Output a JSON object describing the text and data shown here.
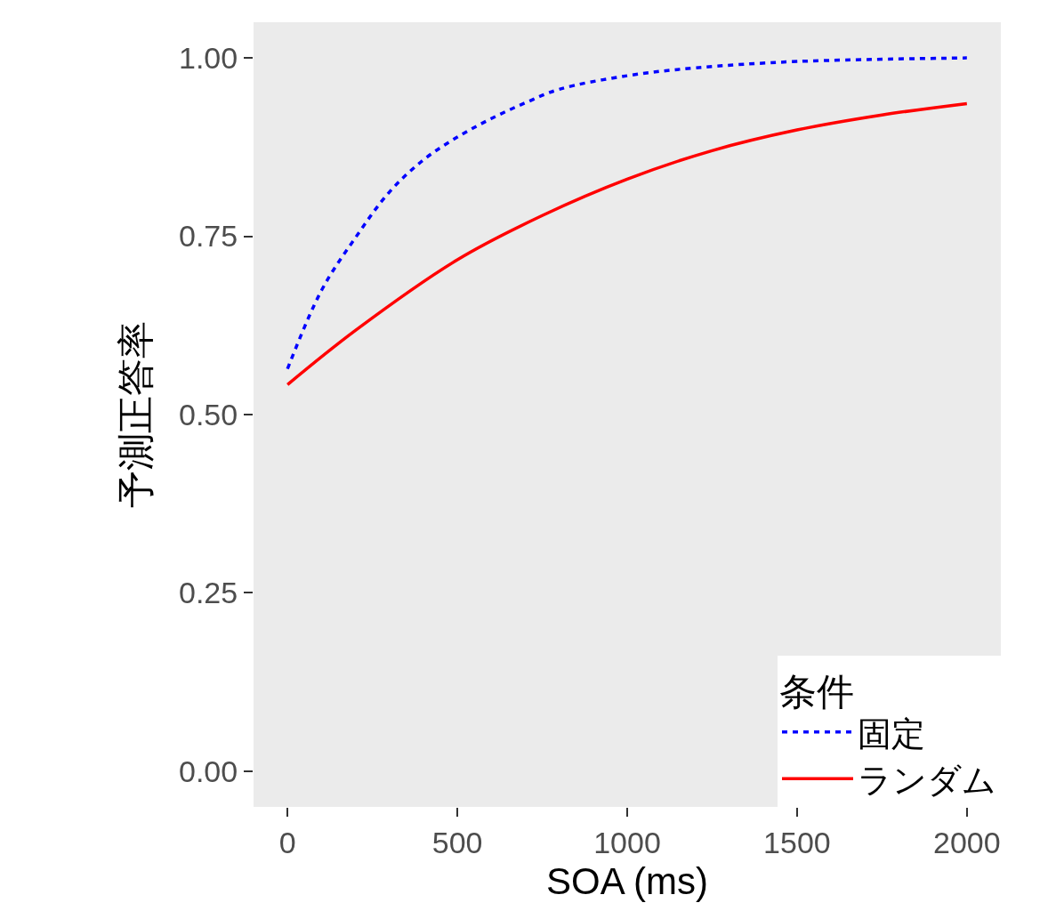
{
  "chart_data": {
    "type": "line",
    "xlabel": "SOA (ms)",
    "ylabel": "予測正答率",
    "legend_title": "条件",
    "xlim": [
      -100,
      2100
    ],
    "xticks": [
      0,
      500,
      1000,
      1500,
      2000
    ],
    "ylim": [
      -0.05,
      1.05
    ],
    "yticks": [
      {
        "value": 0,
        "label": "0.00"
      },
      {
        "value": 0.25,
        "label": "0.25"
      },
      {
        "value": 0.5,
        "label": "0.50"
      },
      {
        "value": 0.75,
        "label": "0.75"
      },
      {
        "value": 1,
        "label": "1.00"
      }
    ],
    "grid": false,
    "legend": "bottom right",
    "series": [
      {
        "name": "固定",
        "color": "#0000ff",
        "line_style": "dotted",
        "x": [
          0,
          100,
          200,
          300,
          400,
          500,
          600,
          700,
          800,
          1000,
          1200,
          1500,
          2000
        ],
        "values": [
          0.564,
          0.674,
          0.748,
          0.812,
          0.857,
          0.889,
          0.915,
          0.937,
          0.956,
          0.975,
          0.986,
          0.995,
          1.0
        ]
      },
      {
        "name": "ランダム",
        "color": "#ff0000",
        "line_style": "solid",
        "x": [
          0,
          200,
          500,
          750,
          1000,
          1250,
          1500,
          1750,
          2000
        ],
        "values": [
          0.542,
          0.618,
          0.717,
          0.779,
          0.83,
          0.87,
          0.899,
          0.92,
          0.936
        ]
      }
    ]
  }
}
